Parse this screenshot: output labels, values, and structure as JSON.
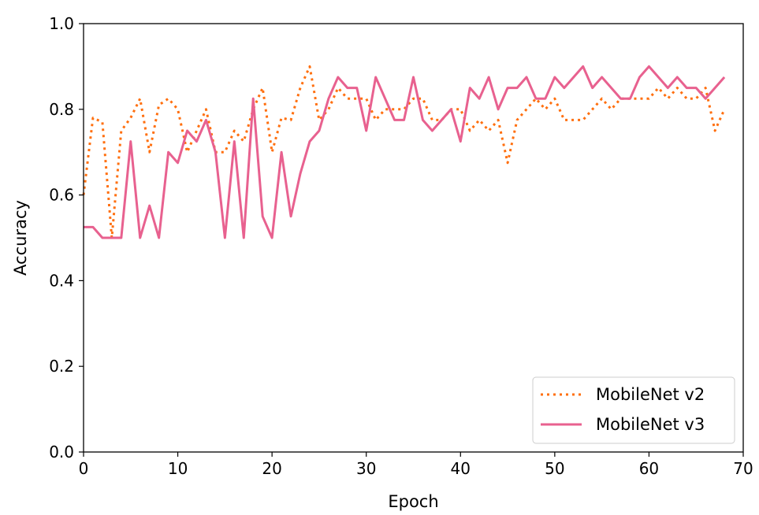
{
  "chart_data": {
    "type": "line",
    "title": "",
    "xlabel": "Epoch",
    "ylabel": "Accuracy",
    "xlim": [
      0,
      70
    ],
    "ylim": [
      0.0,
      1.0
    ],
    "xticks": [
      0,
      10,
      20,
      30,
      40,
      50,
      60,
      70
    ],
    "xtick_labels": [
      "0",
      "10",
      "20",
      "30",
      "40",
      "50",
      "60",
      "70"
    ],
    "yticks": [
      0.0,
      0.2,
      0.4,
      0.6,
      0.8,
      1.0
    ],
    "ytick_labels": [
      "0.0",
      "0.2",
      "0.4",
      "0.6",
      "0.8",
      "1.0"
    ],
    "grid": false,
    "legend_position": "lower-right",
    "series": [
      {
        "name": "MobileNet v2",
        "color": "#ff6f0e",
        "style": "dotted",
        "x": [
          0,
          1,
          2,
          3,
          4,
          5,
          6,
          7,
          8,
          9,
          10,
          11,
          12,
          13,
          14,
          15,
          16,
          17,
          18,
          19,
          20,
          21,
          22,
          23,
          24,
          25,
          26,
          27,
          28,
          29,
          30,
          31,
          32,
          33,
          34,
          35,
          36,
          37,
          38,
          39,
          40,
          41,
          42,
          43,
          44,
          45,
          46,
          47,
          48,
          49,
          50,
          51,
          52,
          53,
          54,
          55,
          56,
          57,
          58,
          59,
          60,
          61,
          62,
          63,
          64,
          65,
          66,
          67,
          68
        ],
        "values": [
          0.6,
          0.78,
          0.77,
          0.5,
          0.75,
          0.78,
          0.825,
          0.7,
          0.81,
          0.825,
          0.8,
          0.7,
          0.75,
          0.8,
          0.7,
          0.7,
          0.75,
          0.725,
          0.8,
          0.85,
          0.7,
          0.78,
          0.775,
          0.85,
          0.9,
          0.775,
          0.8,
          0.85,
          0.825,
          0.825,
          0.825,
          0.775,
          0.8,
          0.8,
          0.8,
          0.825,
          0.825,
          0.775,
          0.775,
          0.8,
          0.8,
          0.75,
          0.775,
          0.75,
          0.775,
          0.675,
          0.775,
          0.8,
          0.825,
          0.8,
          0.825,
          0.775,
          0.775,
          0.775,
          0.8,
          0.825,
          0.8,
          0.825,
          0.825,
          0.825,
          0.825,
          0.85,
          0.825,
          0.85,
          0.825,
          0.825,
          0.85,
          0.75,
          0.8
        ]
      },
      {
        "name": "MobileNet v3",
        "color": "#e8618f",
        "style": "solid",
        "x": [
          0,
          1,
          2,
          3,
          4,
          5,
          6,
          7,
          8,
          9,
          10,
          11,
          12,
          13,
          14,
          15,
          16,
          17,
          18,
          19,
          20,
          21,
          22,
          23,
          24,
          25,
          26,
          27,
          28,
          29,
          30,
          31,
          32,
          33,
          34,
          35,
          36,
          37,
          38,
          39,
          40,
          41,
          42,
          43,
          44,
          45,
          46,
          47,
          48,
          49,
          50,
          51,
          52,
          53,
          54,
          55,
          56,
          57,
          58,
          59,
          60,
          61,
          62,
          63,
          64,
          65,
          66,
          67,
          68
        ],
        "values": [
          0.525,
          0.525,
          0.5,
          0.5,
          0.5,
          0.725,
          0.5,
          0.575,
          0.5,
          0.7,
          0.675,
          0.75,
          0.725,
          0.775,
          0.7,
          0.5,
          0.725,
          0.5,
          0.825,
          0.55,
          0.5,
          0.7,
          0.55,
          0.65,
          0.725,
          0.75,
          0.825,
          0.875,
          0.85,
          0.85,
          0.75,
          0.875,
          0.825,
          0.775,
          0.775,
          0.875,
          0.775,
          0.75,
          0.775,
          0.8,
          0.725,
          0.85,
          0.825,
          0.875,
          0.8,
          0.85,
          0.85,
          0.875,
          0.825,
          0.825,
          0.875,
          0.85,
          0.875,
          0.9,
          0.85,
          0.875,
          0.85,
          0.825,
          0.825,
          0.875,
          0.9,
          0.875,
          0.85,
          0.875,
          0.85,
          0.85,
          0.825,
          0.85,
          0.875
        ]
      }
    ]
  }
}
